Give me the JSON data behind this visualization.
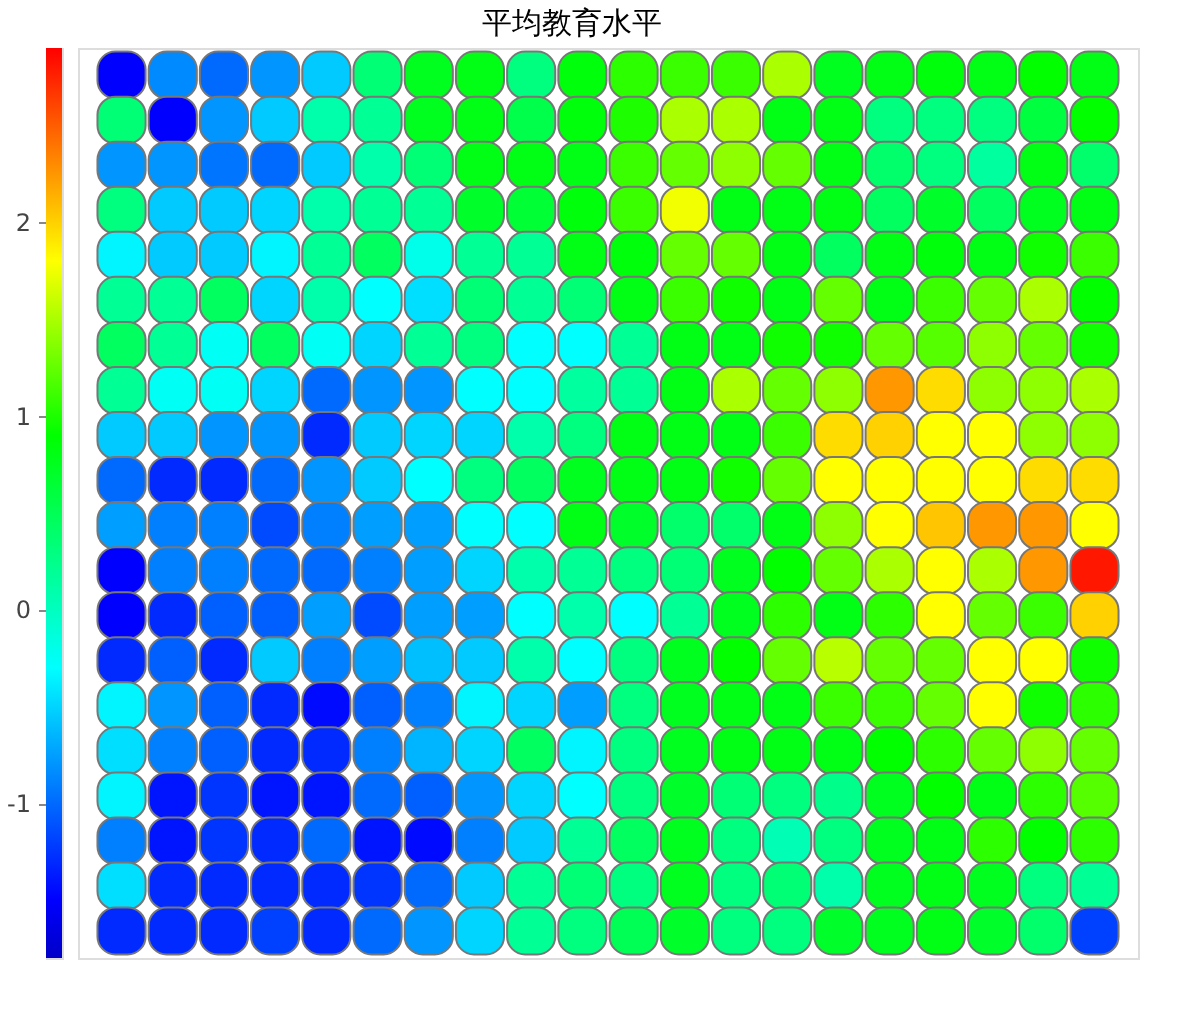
{
  "chart_data": {
    "type": "heatmap",
    "title": "平均教育水平",
    "categories": [
      null,
      null,
      null,
      null,
      null,
      null,
      null,
      null,
      null,
      null,
      null,
      null,
      null,
      null,
      null,
      null,
      null,
      null,
      null,
      null
    ],
    "y_categories": [
      null,
      null,
      null,
      null,
      null,
      null,
      null,
      null,
      null,
      null,
      null,
      null,
      null,
      null,
      null,
      null,
      null,
      null,
      null,
      null
    ],
    "cells": [
      [
        -1.5,
        -0.85,
        -1.0,
        -0.8,
        -0.55,
        0.35,
        0.75,
        0.8,
        0.3,
        0.85,
        1.05,
        1.1,
        1.1,
        1.5,
        0.75,
        0.8,
        0.85,
        0.8,
        0.9,
        0.8
      ],
      [
        0.35,
        -1.5,
        -0.8,
        -0.55,
        0.1,
        0.2,
        0.75,
        0.8,
        0.55,
        0.85,
        1.0,
        1.5,
        1.5,
        0.8,
        0.8,
        0.3,
        0.3,
        0.3,
        0.6,
        0.9
      ],
      [
        -0.8,
        -0.8,
        -0.95,
        -1.0,
        -0.55,
        0.1,
        0.35,
        0.8,
        0.8,
        0.8,
        1.1,
        1.25,
        1.4,
        1.25,
        0.8,
        0.4,
        0.3,
        0.15,
        0.8,
        0.4
      ],
      [
        0.3,
        -0.55,
        -0.55,
        -0.5,
        0.1,
        0.2,
        0.2,
        0.7,
        0.65,
        0.85,
        1.1,
        1.75,
        0.8,
        0.8,
        0.8,
        0.45,
        0.7,
        0.45,
        0.75,
        0.8
      ],
      [
        -0.35,
        -0.55,
        -0.55,
        -0.35,
        0.2,
        0.45,
        -0.2,
        0.2,
        0.2,
        0.8,
        0.85,
        1.25,
        1.25,
        0.8,
        0.45,
        0.8,
        0.85,
        0.8,
        0.95,
        1.1
      ],
      [
        0.2,
        0.2,
        0.45,
        -0.5,
        0.1,
        -0.3,
        -0.45,
        0.35,
        0.2,
        0.35,
        0.8,
        1.1,
        0.95,
        0.8,
        1.25,
        0.8,
        1.1,
        1.25,
        1.5,
        0.9
      ],
      [
        0.45,
        0.2,
        -0.25,
        0.45,
        -0.25,
        -0.5,
        0.2,
        0.3,
        -0.3,
        -0.3,
        0.2,
        0.8,
        0.8,
        0.95,
        0.95,
        1.25,
        1.2,
        1.4,
        1.25,
        0.95
      ],
      [
        0.2,
        -0.25,
        -0.25,
        -0.5,
        -1.0,
        -0.8,
        -0.8,
        -0.3,
        -0.3,
        0.15,
        0.2,
        0.8,
        1.5,
        1.25,
        1.4,
        2.25,
        1.95,
        1.4,
        1.4,
        1.5
      ],
      [
        -0.55,
        -0.55,
        -0.8,
        -0.8,
        -1.3,
        -0.55,
        -0.5,
        -0.5,
        0.1,
        0.3,
        0.8,
        0.8,
        0.8,
        1.1,
        1.95,
        2.0,
        1.8,
        1.8,
        1.4,
        1.4
      ],
      [
        -1.0,
        -1.3,
        -1.3,
        -1.0,
        -0.8,
        -0.55,
        -0.3,
        0.3,
        0.45,
        0.75,
        0.8,
        0.8,
        0.95,
        1.25,
        1.8,
        1.8,
        1.8,
        1.8,
        1.95,
        1.95
      ],
      [
        -0.75,
        -0.9,
        -0.9,
        -1.15,
        -0.9,
        -0.75,
        -0.75,
        -0.3,
        -0.3,
        0.8,
        0.7,
        0.4,
        0.4,
        0.8,
        1.4,
        1.8,
        2.05,
        2.25,
        2.25,
        1.8
      ],
      [
        -1.5,
        -0.9,
        -0.9,
        -1.0,
        -1.0,
        -0.9,
        -0.75,
        -0.5,
        0.1,
        0.2,
        0.3,
        0.35,
        0.75,
        0.9,
        1.25,
        1.5,
        1.8,
        1.5,
        2.25,
        2.8
      ],
      [
        -1.5,
        -1.3,
        -1.05,
        -1.05,
        -0.75,
        -1.15,
        -0.75,
        -0.75,
        -0.3,
        0.1,
        -0.3,
        0.2,
        0.75,
        1.05,
        0.8,
        1.05,
        1.8,
        1.25,
        1.1,
        2.0
      ],
      [
        -1.3,
        -1.05,
        -1.3,
        -0.55,
        -0.9,
        -0.75,
        -0.6,
        -0.55,
        0.1,
        -0.3,
        0.3,
        0.75,
        0.9,
        1.25,
        1.55,
        1.25,
        1.25,
        1.8,
        1.8,
        0.95
      ],
      [
        -0.35,
        -0.8,
        -1.05,
        -1.3,
        -1.45,
        -1.05,
        -0.9,
        -0.35,
        -0.5,
        -0.75,
        0.3,
        0.75,
        0.8,
        0.8,
        1.1,
        1.1,
        1.25,
        1.8,
        0.95,
        1.05
      ],
      [
        -0.45,
        -0.9,
        -1.05,
        -1.3,
        -1.3,
        -0.9,
        -0.65,
        -0.5,
        0.45,
        -0.35,
        0.3,
        0.75,
        0.8,
        0.8,
        0.8,
        0.9,
        1.05,
        1.25,
        1.4,
        1.25
      ],
      [
        -0.35,
        -1.4,
        -1.25,
        -1.4,
        -1.4,
        -1.0,
        -1.05,
        -0.8,
        -0.5,
        -0.3,
        0.3,
        0.7,
        0.35,
        0.3,
        0.25,
        0.75,
        0.9,
        0.8,
        1.05,
        1.2
      ],
      [
        -0.9,
        -1.4,
        -1.25,
        -1.3,
        -1.0,
        -1.4,
        -1.45,
        -0.9,
        -0.55,
        0.2,
        0.45,
        0.75,
        0.3,
        0.05,
        0.3,
        0.75,
        0.8,
        1.05,
        0.9,
        1.05
      ],
      [
        -0.45,
        -1.3,
        -1.3,
        -1.3,
        -1.3,
        -1.25,
        -1.0,
        -0.55,
        0.2,
        0.35,
        0.3,
        0.75,
        0.3,
        0.35,
        0.1,
        0.75,
        0.8,
        0.75,
        0.3,
        0.2
      ],
      [
        -1.3,
        -1.3,
        -1.3,
        -1.2,
        -1.3,
        -1.0,
        -0.8,
        -0.5,
        0.2,
        0.3,
        0.5,
        0.7,
        0.3,
        0.3,
        0.7,
        0.75,
        0.8,
        0.7,
        0.4,
        -1.2
      ]
    ],
    "clim": [
      -1.8,
      2.9
    ],
    "cticks": [
      -1,
      0,
      1,
      2
    ]
  }
}
